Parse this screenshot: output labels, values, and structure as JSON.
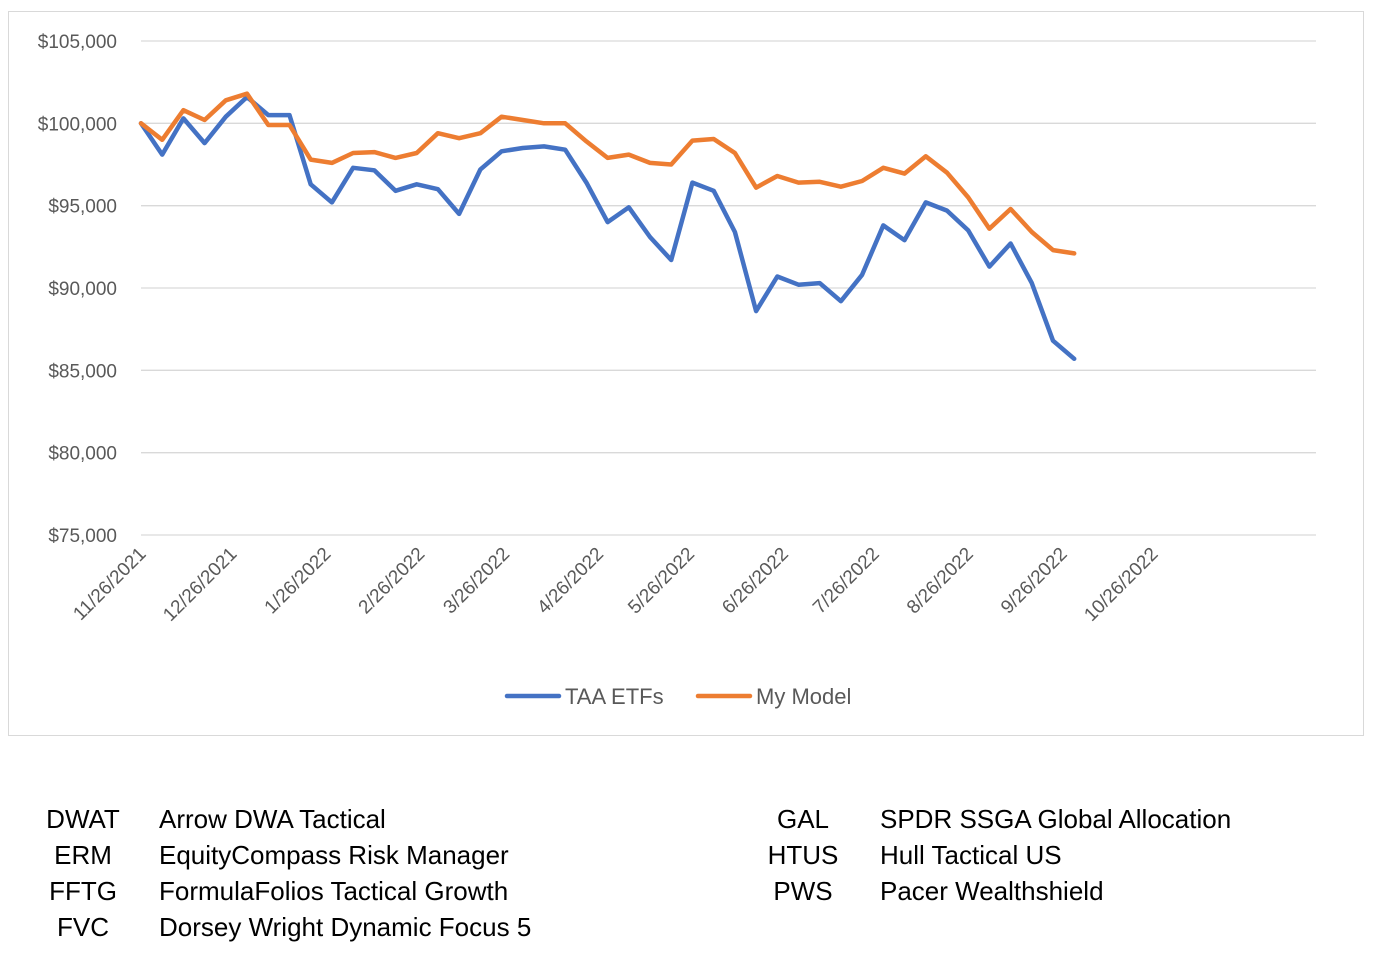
{
  "chart_data": {
    "type": "line",
    "x_ticks": [
      "11/26/2021",
      "12/26/2021",
      "1/26/2022",
      "2/26/2022",
      "3/26/2022",
      "4/26/2022",
      "5/26/2022",
      "6/26/2022",
      "7/26/2022",
      "8/26/2022",
      "9/26/2022",
      "10/26/2022"
    ],
    "y_ticks": [
      "$105,000",
      "$100,000",
      "$95,000",
      "$90,000",
      "$85,000",
      "$80,000",
      "$75,000"
    ],
    "ylim": [
      75000,
      105000
    ],
    "xlim": [
      "2021-11-26",
      "2022-10-26"
    ],
    "grid": true,
    "legend_position": "bottom",
    "x": [
      "2021-11-26",
      "2021-12-03",
      "2021-12-10",
      "2021-12-17",
      "2021-12-24",
      "2021-12-31",
      "2022-01-07",
      "2022-01-14",
      "2022-01-21",
      "2022-01-28",
      "2022-02-04",
      "2022-02-11",
      "2022-02-18",
      "2022-02-25",
      "2022-03-04",
      "2022-03-11",
      "2022-03-18",
      "2022-03-25",
      "2022-04-01",
      "2022-04-08",
      "2022-04-15",
      "2022-04-22",
      "2022-04-29",
      "2022-05-06",
      "2022-05-13",
      "2022-05-20",
      "2022-05-27",
      "2022-06-03",
      "2022-06-10",
      "2022-06-17",
      "2022-06-24",
      "2022-07-01",
      "2022-07-08",
      "2022-07-15",
      "2022-07-22",
      "2022-07-29",
      "2022-08-05",
      "2022-08-12",
      "2022-08-19",
      "2022-08-26",
      "2022-09-02",
      "2022-09-09",
      "2022-09-16",
      "2022-09-23",
      "2022-09-30"
    ],
    "series": [
      {
        "name": "TAA ETFs",
        "color": "#4472C4",
        "values": [
          100000,
          98100,
          100300,
          98800,
          100400,
          101600,
          100500,
          100500,
          96300,
          95200,
          97300,
          97150,
          95900,
          96300,
          96000,
          94500,
          97200,
          98300,
          98500,
          98600,
          98400,
          96400,
          94000,
          94900,
          93100,
          91700,
          96400,
          95900,
          93400,
          88600,
          90700,
          90200,
          90300,
          89200,
          90800,
          93800,
          92900,
          95200,
          94700,
          93500,
          91300,
          92700,
          90300,
          86800,
          85700
        ]
      },
      {
        "name": "My Model",
        "color": "#ED7D31",
        "values": [
          100000,
          99000,
          100800,
          100200,
          101400,
          101800,
          99900,
          99900,
          97800,
          97600,
          98200,
          98250,
          97900,
          98200,
          99400,
          99100,
          99400,
          100400,
          100200,
          100000,
          100000,
          98900,
          97900,
          98100,
          97600,
          97500,
          98950,
          99050,
          98200,
          96100,
          96800,
          96400,
          96450,
          96150,
          96500,
          97300,
          96950,
          98000,
          97000,
          95500,
          93600,
          94800,
          93400,
          92300,
          92100
        ]
      }
    ]
  },
  "tickers": {
    "left": [
      {
        "symbol": "DWAT",
        "name": "Arrow DWA Tactical"
      },
      {
        "symbol": "ERM",
        "name": "EquityCompass Risk Manager"
      },
      {
        "symbol": "FFTG",
        "name": "FormulaFolios Tactical Growth"
      },
      {
        "symbol": "FVC",
        "name": "Dorsey Wright Dynamic Focus 5"
      }
    ],
    "right": [
      {
        "symbol": "GAL",
        "name": "SPDR SSGA Global Allocation"
      },
      {
        "symbol": "HTUS",
        "name": "Hull Tactical US"
      },
      {
        "symbol": "PWS",
        "name": "Pacer Wealthshield"
      }
    ]
  }
}
